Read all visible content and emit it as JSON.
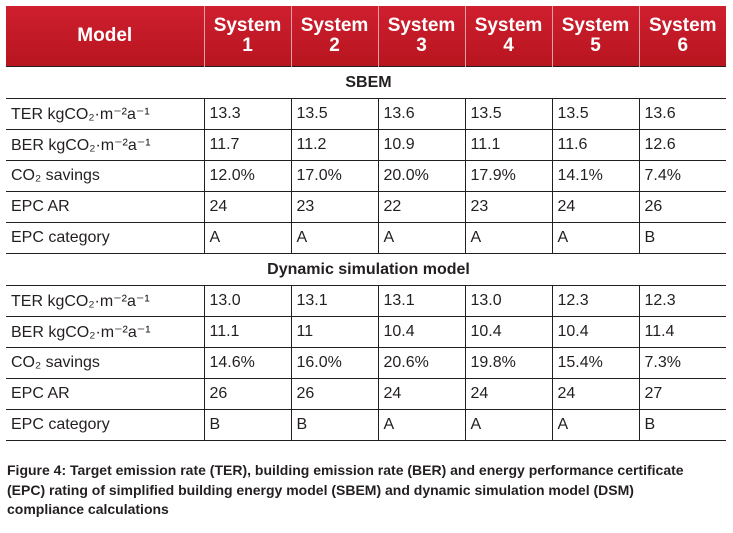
{
  "table": {
    "headers": [
      "Model",
      "System\n1",
      "System\n2",
      "System\n3",
      "System\n4",
      "System\n5",
      "System\n6"
    ],
    "sections": [
      {
        "title": "SBEM",
        "rows": [
          {
            "label": "TER kgCO₂·m⁻²a⁻¹",
            "cells": [
              "13.3",
              "13.5",
              "13.6",
              "13.5",
              "13.5",
              "13.6"
            ]
          },
          {
            "label": "BER kgCO₂·m⁻²a⁻¹",
            "cells": [
              "11.7",
              "11.2",
              "10.9",
              "11.1",
              "11.6",
              "12.6"
            ]
          },
          {
            "label": "CO₂ savings",
            "cells": [
              "12.0%",
              "17.0%",
              "20.0%",
              "17.9%",
              "14.1%",
              "7.4%"
            ]
          },
          {
            "label": "EPC AR",
            "cells": [
              "24",
              "23",
              "22",
              "23",
              "24",
              "26"
            ]
          },
          {
            "label": "EPC category",
            "cells": [
              "A",
              "A",
              "A",
              "A",
              "A",
              "B"
            ]
          }
        ]
      },
      {
        "title": "Dynamic simulation model",
        "rows": [
          {
            "label": "TER kgCO₂·m⁻²a⁻¹",
            "cells": [
              "13.0",
              "13.1",
              "13.1",
              "13.0",
              "12.3",
              "12.3"
            ]
          },
          {
            "label": "BER kgCO₂·m⁻²a⁻¹",
            "cells": [
              "11.1",
              "11",
              "10.4",
              "10.4",
              "10.4",
              "11.4"
            ]
          },
          {
            "label": "CO₂ savings",
            "cells": [
              "14.6%",
              "16.0%",
              "20.6%",
              "19.8%",
              "15.4%",
              "7.3%"
            ]
          },
          {
            "label": "EPC AR",
            "cells": [
              "26",
              "26",
              "24",
              "24",
              "24",
              "27"
            ]
          },
          {
            "label": "EPC category",
            "cells": [
              "B",
              "B",
              "A",
              "A",
              "A",
              "B"
            ]
          }
        ]
      }
    ]
  },
  "caption": "Figure 4: Target emission rate (TER), building emission rate (BER) and energy performance certificate (EPC) rating of simplified building energy model (SBEM) and dynamic simulation model (DSM) compliance calculations",
  "colors": {
    "header_bg": "#c8192a",
    "header_text": "#ffffff",
    "border": "#231f20"
  }
}
